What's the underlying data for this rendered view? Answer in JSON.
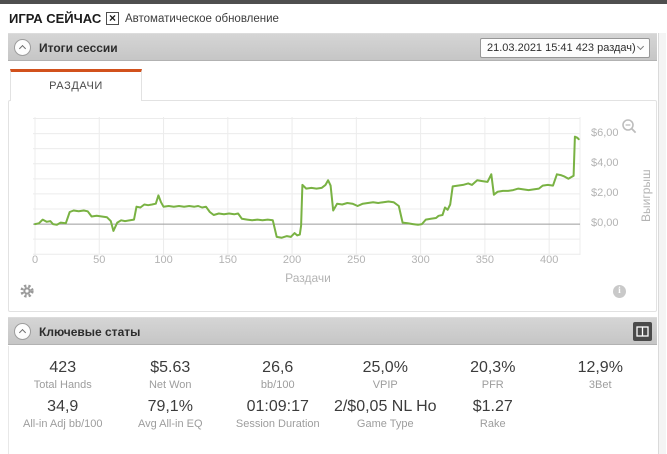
{
  "titlebar": {
    "app_title": "ИГРА СЕЙЧАС",
    "auto_update_label": "Автоматическое обновление",
    "auto_update_checked": true,
    "checkbox_glyph": "×"
  },
  "session_panel": {
    "title": "Итоги сессии",
    "session_selector_value": "21.03.2021 15:41 423 раздач)",
    "tab_label": "РАЗДАЧИ"
  },
  "chart_data": {
    "type": "line",
    "xlabel": "Раздачи",
    "ylabel": "Выигрыш",
    "x_ticks": [
      0,
      50,
      100,
      150,
      200,
      250,
      300,
      350,
      400
    ],
    "y_tick_labels": [
      "$6,00",
      "$4,00",
      "$2,00",
      "$0,00"
    ],
    "y_tick_values": [
      6,
      4,
      2,
      0
    ],
    "xlim": [
      0,
      424
    ],
    "ylim": [
      -2.05,
      7.1
    ],
    "grid": true,
    "line_color": "#79b243",
    "zero_line_color": "#9b9b9b",
    "grid_color": "#ececec",
    "series": [
      {
        "name": "Выигрыш",
        "points": [
          [
            0,
            0
          ],
          [
            3,
            0.05
          ],
          [
            6,
            0.3
          ],
          [
            9,
            0.15
          ],
          [
            12,
            0.2
          ],
          [
            14,
            0
          ],
          [
            17,
            -0.05
          ],
          [
            20,
            0.1
          ],
          [
            24,
            0.05
          ],
          [
            27,
            0.8
          ],
          [
            30,
            0.9
          ],
          [
            34,
            0.85
          ],
          [
            38,
            0.9
          ],
          [
            41,
            0.85
          ],
          [
            44,
            0.5
          ],
          [
            48,
            0.55
          ],
          [
            52,
            0.5
          ],
          [
            56,
            0.45
          ],
          [
            59,
            0.2
          ],
          [
            61,
            -0.45
          ],
          [
            64,
            0.1
          ],
          [
            67,
            0.25
          ],
          [
            70,
            0.2
          ],
          [
            74,
            0.25
          ],
          [
            77,
            0.3
          ],
          [
            79,
            1.15
          ],
          [
            82,
            1.1
          ],
          [
            85,
            1.3
          ],
          [
            88,
            1.25
          ],
          [
            91,
            1.3
          ],
          [
            94,
            1.35
          ],
          [
            96,
            1.9
          ],
          [
            98,
            1.45
          ],
          [
            100,
            1.15
          ],
          [
            104,
            1.2
          ],
          [
            108,
            1.15
          ],
          [
            112,
            1.2
          ],
          [
            116,
            1.15
          ],
          [
            120,
            1.2
          ],
          [
            124,
            1.15
          ],
          [
            127,
            1.2
          ],
          [
            130,
            1.1
          ],
          [
            133,
            1.15
          ],
          [
            136,
            0.8
          ],
          [
            139,
            0.6
          ],
          [
            143,
            0.7
          ],
          [
            147,
            0.65
          ],
          [
            151,
            0.7
          ],
          [
            155,
            0.65
          ],
          [
            158,
            0.7
          ],
          [
            161,
            0.35
          ],
          [
            165,
            0.3
          ],
          [
            169,
            0.25
          ],
          [
            173,
            0.3
          ],
          [
            177,
            0.25
          ],
          [
            181,
            0.3
          ],
          [
            185,
            0.25
          ],
          [
            188,
            -0.85
          ],
          [
            192,
            -0.9
          ],
          [
            196,
            -0.8
          ],
          [
            199,
            -0.85
          ],
          [
            202,
            -0.6
          ],
          [
            204,
            -0.75
          ],
          [
            206,
            -0.7
          ],
          [
            207,
            -0.1
          ],
          [
            208,
            2.6
          ],
          [
            211,
            2.35
          ],
          [
            215,
            2.4
          ],
          [
            219,
            2.35
          ],
          [
            223,
            2.4
          ],
          [
            226,
            2.6
          ],
          [
            228,
            2.9
          ],
          [
            230,
            2.55
          ],
          [
            232,
            0.9
          ],
          [
            235,
            1.35
          ],
          [
            239,
            1.3
          ],
          [
            243,
            1.4
          ],
          [
            247,
            1.35
          ],
          [
            251,
            1.2
          ],
          [
            255,
            1.35
          ],
          [
            259,
            1.4
          ],
          [
            263,
            1.45
          ],
          [
            267,
            1.4
          ],
          [
            271,
            1.45
          ],
          [
            275,
            1.5
          ],
          [
            279,
            1.45
          ],
          [
            283,
            1.2
          ],
          [
            286,
            0.1
          ],
          [
            290,
            0.05
          ],
          [
            294,
            0
          ],
          [
            298,
            -0.05
          ],
          [
            301,
            0
          ],
          [
            304,
            0.3
          ],
          [
            308,
            0.35
          ],
          [
            312,
            0.4
          ],
          [
            314,
            0.55
          ],
          [
            317,
            0.6
          ],
          [
            319,
            1.1
          ],
          [
            321,
            0.95
          ],
          [
            323,
            1.3
          ],
          [
            325,
            2.5
          ],
          [
            329,
            2.55
          ],
          [
            333,
            2.6
          ],
          [
            337,
            2.7
          ],
          [
            340,
            2.6
          ],
          [
            344,
            2.9
          ],
          [
            348,
            2.85
          ],
          [
            352,
            2.8
          ],
          [
            355,
            3.3
          ],
          [
            357,
            1.95
          ],
          [
            360,
            2.15
          ],
          [
            364,
            2.2
          ],
          [
            368,
            2.2
          ],
          [
            372,
            2.25
          ],
          [
            376,
            2.35
          ],
          [
            380,
            2.3
          ],
          [
            384,
            2.25
          ],
          [
            388,
            2.3
          ],
          [
            392,
            2.35
          ],
          [
            395,
            2.55
          ],
          [
            399,
            2.6
          ],
          [
            403,
            2.55
          ],
          [
            406,
            3.3
          ],
          [
            409,
            3.25
          ],
          [
            412,
            3.15
          ],
          [
            415,
            3.0
          ],
          [
            417,
            3.1
          ],
          [
            419,
            3.2
          ],
          [
            420,
            5.8
          ],
          [
            422,
            5.72
          ],
          [
            423,
            5.63
          ]
        ]
      }
    ]
  },
  "key_stats": {
    "title": "Ключевые статы",
    "rows": [
      [
        {
          "value": "423",
          "label": "Total Hands"
        },
        {
          "value": "$5.63",
          "label": "Net Won"
        },
        {
          "value": "26,6",
          "label": "bb/100"
        },
        {
          "value": "25,0%",
          "label": "VPIP"
        },
        {
          "value": "20,3%",
          "label": "PFR"
        },
        {
          "value": "12,9%",
          "label": "3Bet"
        }
      ],
      [
        {
          "value": "34,9",
          "label": "All-in Adj bb/100"
        },
        {
          "value": "79,1%",
          "label": "Avg All-in EQ"
        },
        {
          "value": "01:09:17",
          "label": "Session Duration"
        },
        {
          "value": "2/$0,05 NL Ho",
          "label": "Game Type"
        },
        {
          "value": "$1.27",
          "label": "Rake"
        }
      ]
    ]
  }
}
